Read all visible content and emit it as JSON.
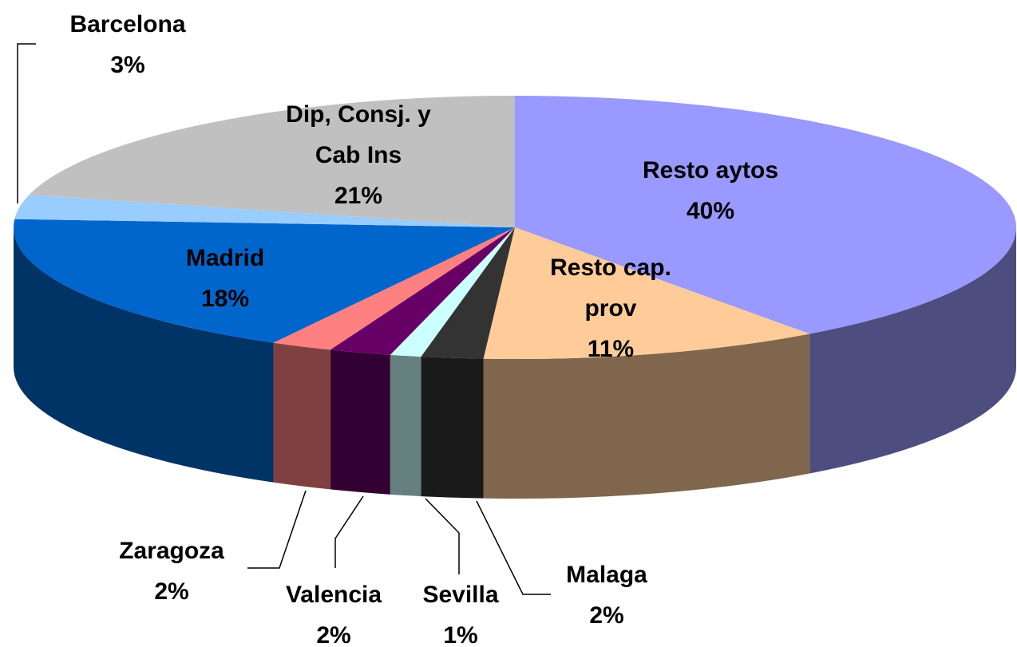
{
  "chart_data": {
    "type": "pie",
    "categories": [
      "Resto aytos",
      "Resto cap. prov",
      "Malaga",
      "Sevilla",
      "Valencia",
      "Zaragoza",
      "Madrid",
      "Barcelona",
      "Dip, Consj. y Cab Ins"
    ],
    "values": [
      40,
      11,
      2,
      1,
      2,
      2,
      18,
      3,
      21
    ],
    "value_labels": [
      "40%",
      "11%",
      "2%",
      "1%",
      "2%",
      "2%",
      "18%",
      "3%",
      "21%"
    ],
    "colors": [
      "#9999ff",
      "#ffcc99",
      "#333333",
      "#ccffff",
      "#660066",
      "#ff8080",
      "#0066cc",
      "#99ccff",
      "#c0c0c0"
    ]
  }
}
